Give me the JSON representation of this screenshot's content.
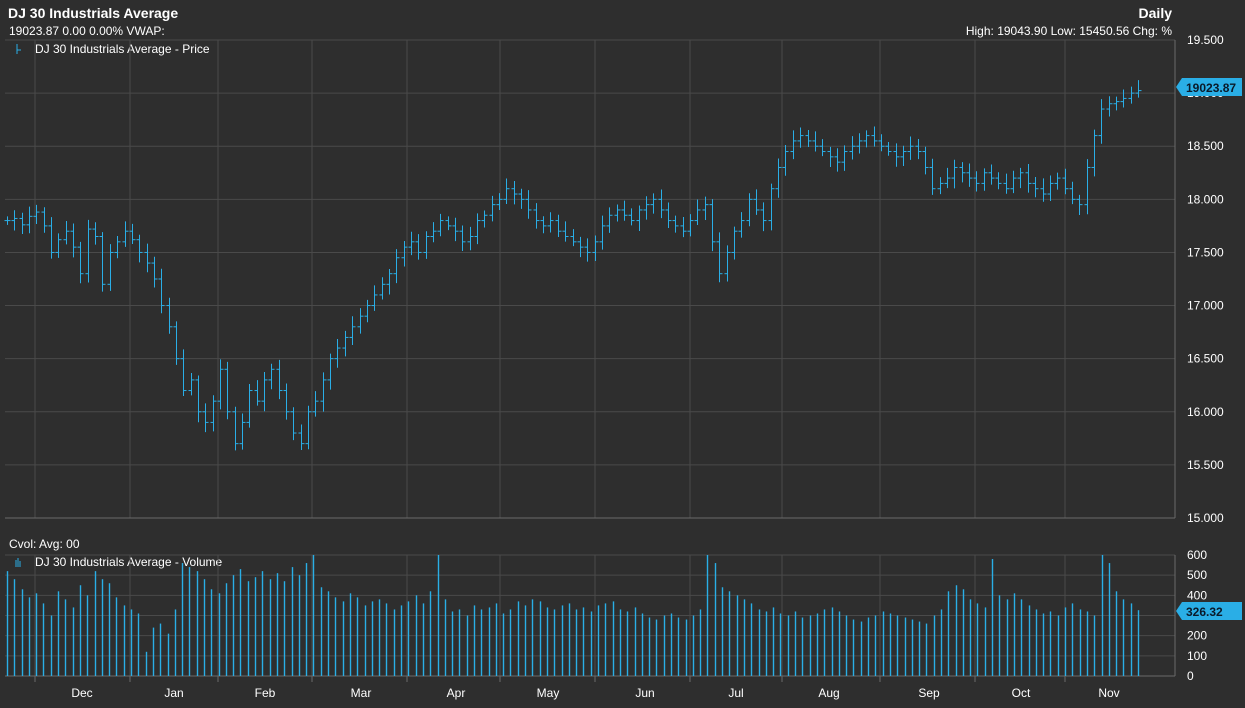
{
  "header": {
    "title": "DJ 30 Industrials Average",
    "subline": "19023.87 0.00 0.00%  VWAP:",
    "period": "Daily",
    "stats": "High: 19043.90 Low: 15450.56 Chg: %"
  },
  "price_panel": {
    "legend": "DJ 30 Industrials Average - Price",
    "last_value": "19023.87",
    "y_ticks": [
      "19.500",
      "19.000",
      "18.500",
      "18.000",
      "17.500",
      "17.000",
      "16.500",
      "16.000",
      "15.500",
      "15.000"
    ]
  },
  "volume_panel": {
    "label": "Cvol:  Avg: 00",
    "legend": "DJ 30 Industrials Average - Volume",
    "last_value": "326.32",
    "y_ticks": [
      "600",
      "500",
      "400",
      "300",
      "200",
      "100",
      "0"
    ]
  },
  "x_axis": {
    "months": [
      "Dec",
      "Jan",
      "Feb",
      "Mar",
      "Apr",
      "May",
      "Jun",
      "Jul",
      "Aug",
      "Sep",
      "Oct",
      "Nov"
    ]
  },
  "colors": {
    "series": "#2aaee6",
    "badge": "#2aaee6",
    "background": "#2e2e2e",
    "grid": "#4a4a4a"
  },
  "chart_data": [
    {
      "type": "ohlc",
      "title": "DJ 30 Industrials Average - Price",
      "x_labels": [
        "Dec",
        "Jan",
        "Feb",
        "Mar",
        "Apr",
        "May",
        "Jun",
        "Jul",
        "Aug",
        "Sep",
        "Oct",
        "Nov"
      ],
      "ylim": [
        15000,
        19500
      ],
      "y_unit_note": "axis ticks shown in thousands",
      "closes": [
        17800,
        17820,
        17760,
        17840,
        17880,
        17750,
        17500,
        17620,
        17700,
        17550,
        17300,
        17720,
        17650,
        17200,
        17500,
        17600,
        17700,
        17620,
        17500,
        17400,
        17250,
        17000,
        16800,
        16500,
        16200,
        16300,
        16000,
        15900,
        16100,
        16400,
        16000,
        15700,
        15900,
        16200,
        16100,
        16300,
        16400,
        16200,
        16000,
        15800,
        15700,
        16000,
        16100,
        16300,
        16500,
        16600,
        16700,
        16800,
        16900,
        17000,
        17100,
        17200,
        17300,
        17450,
        17550,
        17600,
        17500,
        17650,
        17700,
        17800,
        17750,
        17700,
        17600,
        17650,
        17800,
        17850,
        17950,
        18000,
        18100,
        18050,
        18000,
        17900,
        17800,
        17750,
        17800,
        17700,
        17650,
        17600,
        17550,
        17500,
        17600,
        17750,
        17850,
        17900,
        17850,
        17800,
        17900,
        17950,
        18000,
        17900,
        17800,
        17750,
        17700,
        17800,
        17900,
        17950,
        17600,
        17300,
        17500,
        17700,
        17800,
        18000,
        17900,
        17800,
        18100,
        18300,
        18450,
        18550,
        18600,
        18550,
        18500,
        18450,
        18400,
        18350,
        18450,
        18500,
        18550,
        18600,
        18550,
        18500,
        18450,
        18400,
        18450,
        18500,
        18450,
        18300,
        18100,
        18150,
        18200,
        18300,
        18250,
        18200,
        18150,
        18250,
        18200,
        18150,
        18100,
        18200,
        18250,
        18150,
        18100,
        18050,
        18150,
        18200,
        18100,
        18000,
        17950,
        18300,
        18600,
        18850,
        18900,
        18920,
        18950,
        19000,
        19023.87
      ],
      "high": 19043.9,
      "low": 15450.56
    },
    {
      "type": "bar",
      "title": "DJ 30 Industrials Average - Volume",
      "ylim": [
        0,
        600
      ],
      "last": 326.32,
      "values": [
        520,
        480,
        430,
        390,
        410,
        360,
        300,
        420,
        380,
        340,
        450,
        400,
        520,
        480,
        460,
        390,
        350,
        330,
        310,
        120,
        240,
        260,
        210,
        330,
        560,
        540,
        520,
        480,
        430,
        410,
        460,
        500,
        530,
        470,
        490,
        520,
        480,
        510,
        470,
        540,
        500,
        560,
        600,
        440,
        420,
        390,
        370,
        410,
        390,
        350,
        370,
        380,
        360,
        330,
        350,
        370,
        400,
        360,
        420,
        600,
        380,
        320,
        330,
        300,
        350,
        330,
        340,
        360,
        310,
        330,
        370,
        350,
        380,
        370,
        340,
        330,
        350,
        360,
        330,
        340,
        320,
        350,
        360,
        370,
        330,
        320,
        340,
        310,
        290,
        280,
        300,
        310,
        290,
        280,
        300,
        330,
        600,
        560,
        440,
        420,
        400,
        380,
        360,
        330,
        320,
        340,
        310,
        300,
        320,
        290,
        300,
        310,
        330,
        340,
        320,
        300,
        280,
        270,
        290,
        300,
        320,
        310,
        300,
        290,
        280,
        270,
        260,
        300,
        330,
        420,
        450,
        430,
        380,
        360,
        340,
        580,
        400,
        380,
        410,
        380,
        350,
        330,
        310,
        320,
        300,
        340,
        360,
        330,
        320,
        300,
        600,
        560,
        420,
        380,
        360,
        326.32
      ]
    }
  ]
}
